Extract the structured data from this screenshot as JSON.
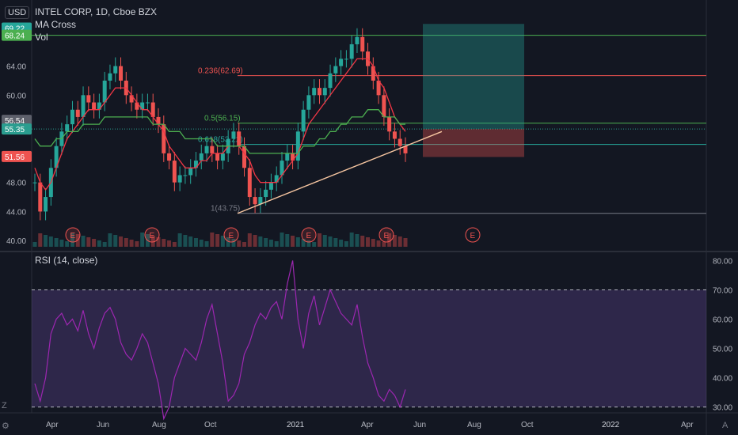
{
  "chart_data": [
    {
      "type": "candlestick",
      "title": "INTEL CORP, 1D, Cboe BZX",
      "indicators": [
        "MA Cross",
        "Vol"
      ],
      "currency": "USD",
      "x_tick_labels": [
        "Apr",
        "Jun",
        "Aug",
        "Oct",
        "2021",
        "Apr",
        "Jun",
        "Aug",
        "Oct",
        "2022",
        "Apr"
      ],
      "y_ticks": [
        40.0,
        44.0,
        48.0,
        52.0,
        56.0,
        60.0,
        64.0
      ],
      "y_tick_labels": [
        "40.00",
        "44.00",
        "48.00",
        "",
        "",
        "60.00",
        "64.00"
      ],
      "ylim": [
        38.5,
        72.0
      ],
      "price_labels": [
        {
          "text": "69.22",
          "value": 69.22,
          "color": "#26a69a"
        },
        {
          "text": "68.24",
          "value": 68.24,
          "color": "#4caf50"
        },
        {
          "text": "56.54",
          "value": 56.54,
          "color": "#5d606b"
        },
        {
          "text": "55.35",
          "value": 55.35,
          "color": "#2a9d8f"
        },
        {
          "text": "51.56",
          "value": 51.56,
          "color": "#ef5350"
        }
      ],
      "fib_levels": [
        {
          "label": "0.236(62.69)",
          "value": 62.69,
          "color": "#ef5350"
        },
        {
          "label": "0.5(56.15)",
          "value": 56.15,
          "color": "#4caf50"
        },
        {
          "label": "0.618(53.22)",
          "value": 53.22,
          "color": "#26a69a"
        },
        {
          "label": "1(43.75)",
          "value": 43.75,
          "color": "#787b86"
        }
      ],
      "earnings_marker": "E",
      "series": [
        {
          "name": "Price",
          "color_up": "#26a69a",
          "color_down": "#ef5350",
          "values": [
            48,
            44,
            46,
            50,
            53,
            55,
            56,
            58,
            57,
            60,
            59,
            58,
            59,
            62,
            63,
            64,
            62,
            60,
            59,
            58,
            59,
            59,
            57,
            56,
            52,
            51,
            48,
            49,
            49,
            50,
            51,
            52,
            53,
            52,
            51,
            52,
            54,
            55,
            53,
            50,
            46,
            45,
            46,
            47,
            48,
            49,
            51,
            52,
            51,
            55,
            58,
            60,
            61,
            60,
            61,
            63,
            64,
            65,
            65,
            67,
            68,
            66,
            64,
            62,
            60,
            57,
            55,
            54,
            53,
            52
          ]
        },
        {
          "name": "MA fast",
          "color": "#f23645",
          "values": [
            50,
            48,
            47,
            48,
            50,
            52,
            54,
            55,
            56,
            57,
            58,
            58,
            58,
            59,
            60,
            61,
            61,
            61,
            60,
            59,
            58,
            58,
            57,
            56,
            55,
            53,
            52,
            51,
            50,
            50,
            50,
            51,
            51,
            52,
            52,
            52,
            53,
            53,
            53,
            52,
            51,
            49,
            48,
            48,
            48,
            48,
            49,
            50,
            51,
            52,
            54,
            56,
            57,
            58,
            59,
            60,
            61,
            62,
            63,
            64,
            65,
            65,
            65,
            64,
            62,
            61,
            59,
            57,
            56,
            55
          ]
        },
        {
          "name": "MA slow",
          "color": "#4caf50",
          "values": [
            54,
            53,
            53,
            53,
            54,
            54,
            55,
            55,
            55,
            56,
            56,
            56,
            56,
            57,
            57,
            57,
            57,
            57,
            57,
            57,
            57,
            57,
            56,
            56,
            56,
            55,
            55,
            55,
            54,
            54,
            54,
            54,
            54,
            54,
            53,
            53,
            53,
            53,
            53,
            53,
            52,
            52,
            52,
            52,
            52,
            52,
            52,
            52,
            52,
            52,
            53,
            53,
            53,
            54,
            54,
            55,
            55,
            56,
            56,
            57,
            57,
            57,
            58,
            58,
            58,
            57,
            57,
            57,
            56,
            56
          ]
        }
      ]
    },
    {
      "type": "line",
      "title": "RSI (14, close)",
      "y_tick_labels": [
        "80.00",
        "70.00",
        "60.00",
        "50.00",
        "40.00",
        "30.00"
      ],
      "ylim": [
        28,
        82
      ],
      "bands": [
        70,
        30
      ],
      "series": [
        {
          "name": "RSI",
          "color": "#9c27b0",
          "values": [
            38,
            32,
            40,
            55,
            60,
            62,
            58,
            60,
            56,
            63,
            55,
            50,
            57,
            62,
            64,
            60,
            52,
            48,
            46,
            50,
            55,
            52,
            45,
            38,
            26,
            30,
            40,
            45,
            50,
            48,
            46,
            52,
            60,
            65,
            55,
            45,
            32,
            34,
            38,
            48,
            52,
            58,
            62,
            60,
            64,
            66,
            60,
            72,
            80,
            60,
            50,
            62,
            68,
            58,
            64,
            70,
            66,
            62,
            60,
            58,
            65,
            54,
            45,
            40,
            34,
            32,
            36,
            34,
            30,
            36
          ]
        }
      ]
    }
  ]
}
